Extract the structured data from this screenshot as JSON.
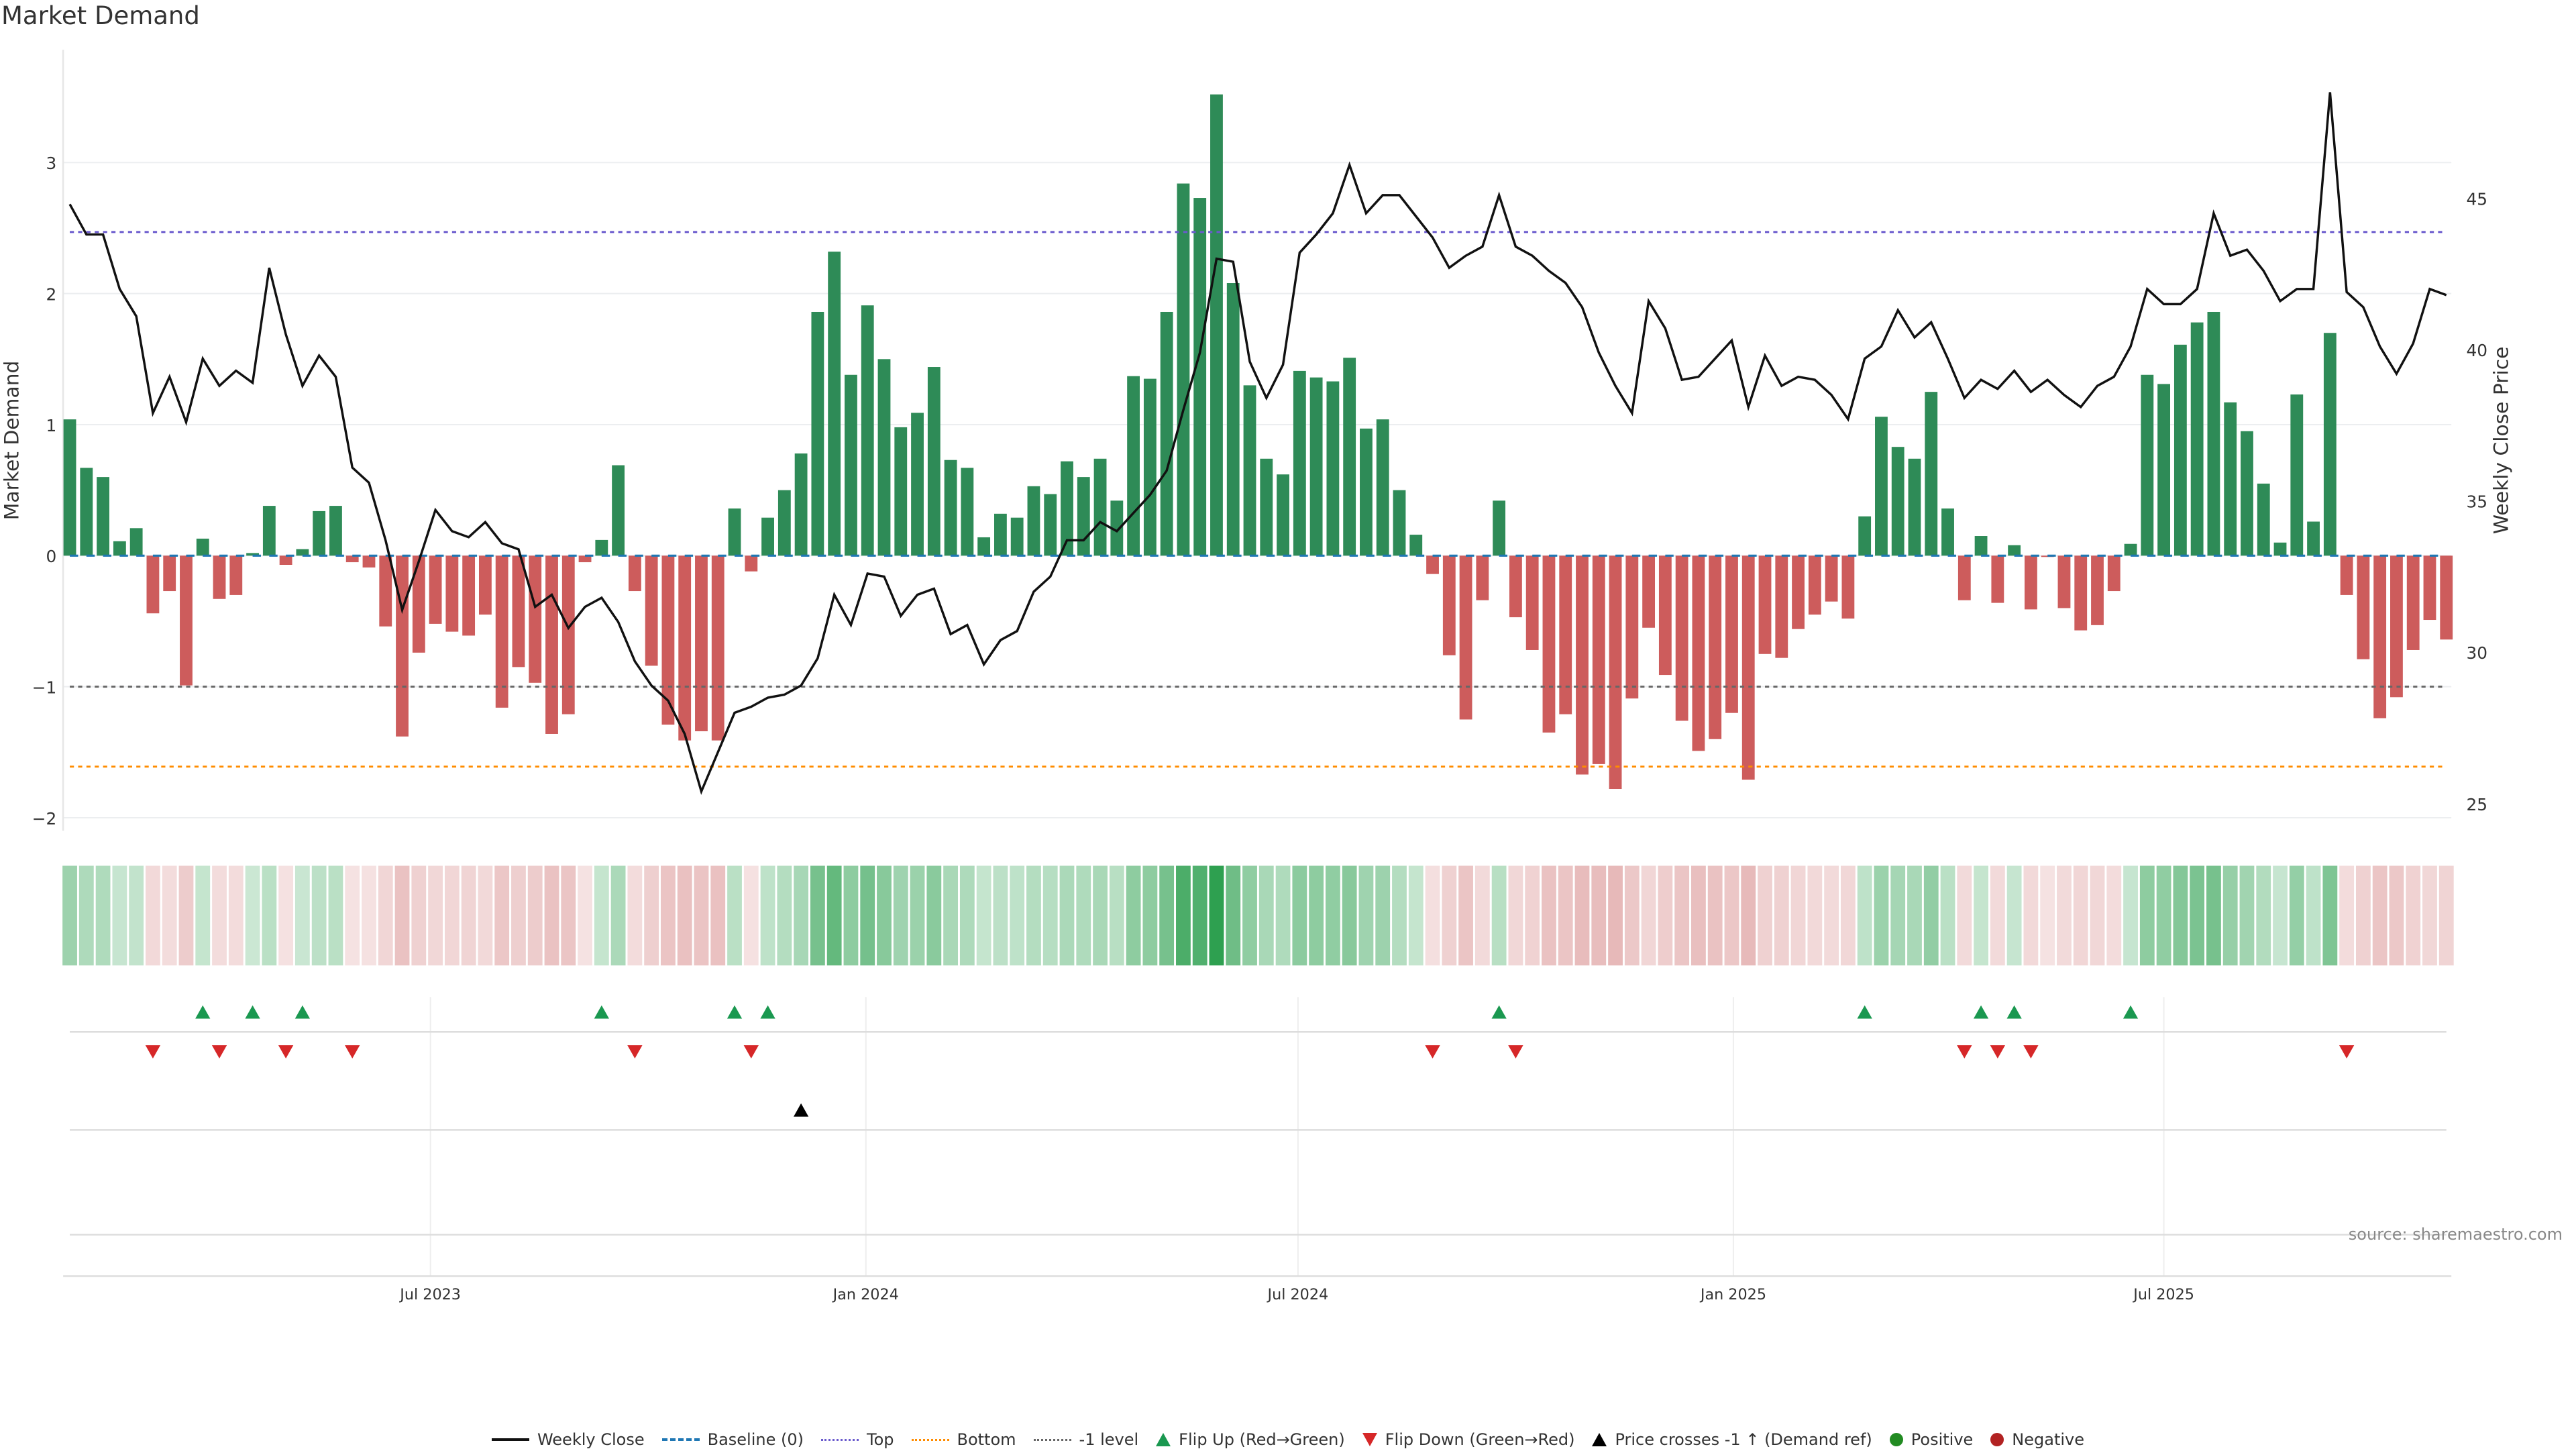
{
  "title": "Market Demand",
  "source": "source: sharemaestro.com",
  "legend": {
    "weekly_close": "Weekly Close",
    "baseline": "Baseline (0)",
    "top": "Top",
    "bottom": "Bottom",
    "minus1": "-1 level",
    "flip_up": "Flip Up (Red→Green)",
    "flip_down": "Flip Down (Green→Red)",
    "price_cross": "Price crosses -1 ↑ (Demand ref)",
    "positive": "Positive",
    "negative": "Negative"
  },
  "colors": {
    "positive": "#2e8b57",
    "negative": "#cd5c5c",
    "price": "#111111",
    "baseline": "#1f77b4",
    "top": "#6a5acd",
    "bottom": "#ff8c00",
    "minus1": "#666666",
    "flip_up": "#1a9850",
    "flip_down": "#d62728",
    "positive_dot": "#228b22",
    "negative_dot": "#b22222"
  },
  "chart_data": {
    "type": "bar+line",
    "title": "Market Demand",
    "ylabel": "Market Demand",
    "y2label": "Weekly Close Price",
    "ylim": [
      -2.1,
      3.86
    ],
    "y2lim": [
      24.1,
      49.9
    ],
    "yticks": [
      -2,
      -1,
      0,
      1,
      2,
      3
    ],
    "yticklabels": [
      "−2",
      "−1",
      "0",
      "1",
      "2",
      "3"
    ],
    "y2ticks": [
      25,
      30,
      35,
      40,
      45
    ],
    "y2ticklabels": [
      "25",
      "30",
      "35",
      "40",
      "45"
    ],
    "x_ticks": [
      {
        "label": "Jul 2023",
        "week": 21.7
      },
      {
        "label": "Jan 2024",
        "week": 47.9
      },
      {
        "label": "Jul 2024",
        "week": 73.9
      },
      {
        "label": "Jan 2025",
        "week": 100.1
      },
      {
        "label": "Jul 2025",
        "week": 126.0
      }
    ],
    "reference_levels": {
      "top": 2.47,
      "bottom": -1.61,
      "minus1": -1.0,
      "baseline": 0
    },
    "demand": [
      1.04,
      0.67,
      0.6,
      0.11,
      0.21,
      -0.44,
      -0.27,
      -0.99,
      0.13,
      -0.33,
      -0.3,
      0.02,
      0.38,
      -0.07,
      0.05,
      0.34,
      0.38,
      -0.05,
      -0.09,
      -0.54,
      -1.38,
      -0.74,
      -0.52,
      -0.58,
      -0.61,
      -0.45,
      -1.16,
      -0.85,
      -0.97,
      -1.36,
      -1.21,
      -0.05,
      0.12,
      0.69,
      -0.27,
      -0.84,
      -1.29,
      -1.41,
      -1.34,
      -1.41,
      0.36,
      -0.12,
      0.29,
      0.5,
      0.78,
      1.86,
      2.32,
      1.38,
      1.91,
      1.5,
      0.98,
      1.09,
      1.44,
      0.73,
      0.67,
      0.14,
      0.32,
      0.29,
      0.53,
      0.47,
      0.72,
      0.6,
      0.74,
      0.42,
      1.37,
      1.35,
      1.86,
      2.84,
      2.73,
      3.52,
      2.08,
      1.3,
      0.74,
      0.62,
      1.41,
      1.36,
      1.33,
      1.51,
      0.97,
      1.04,
      0.5,
      0.16,
      -0.14,
      -0.76,
      -1.25,
      -0.34,
      0.42,
      -0.47,
      -0.72,
      -1.35,
      -1.21,
      -1.67,
      -1.59,
      -1.78,
      -1.09,
      -0.55,
      -0.91,
      -1.26,
      -1.49,
      -1.4,
      -1.2,
      -1.71,
      -0.75,
      -0.78,
      -0.56,
      -0.45,
      -0.35,
      -0.48,
      0.3,
      1.06,
      0.83,
      0.74,
      1.25,
      0.36,
      -0.34,
      0.15,
      -0.36,
      0.08,
      -0.41,
      -0.01,
      -0.4,
      -0.57,
      -0.53,
      -0.27,
      0.09,
      1.38,
      1.31,
      1.61,
      1.78,
      1.86,
      1.17,
      0.95,
      0.55,
      0.1,
      1.23,
      0.26,
      1.7,
      -0.3,
      -0.79,
      -1.24,
      -1.08,
      -0.72,
      -0.49,
      -0.64
    ],
    "weekly_close": [
      44.8,
      43.8,
      43.8,
      42.0,
      41.1,
      37.9,
      39.1,
      37.6,
      39.7,
      38.8,
      39.3,
      38.9,
      42.7,
      40.5,
      38.8,
      39.8,
      39.1,
      36.1,
      35.6,
      33.7,
      31.4,
      33.0,
      34.7,
      34.0,
      33.8,
      34.3,
      33.6,
      33.4,
      31.5,
      31.9,
      30.8,
      31.5,
      31.8,
      31.0,
      29.7,
      28.9,
      28.4,
      27.3,
      25.4,
      26.7,
      28.0,
      28.2,
      28.5,
      28.6,
      28.9,
      29.8,
      31.9,
      30.9,
      32.6,
      32.5,
      31.2,
      31.9,
      32.1,
      30.6,
      30.9,
      29.6,
      30.4,
      30.7,
      32.0,
      32.5,
      33.7,
      33.7,
      34.3,
      34.0,
      34.6,
      35.2,
      36.0,
      38.0,
      39.9,
      43.0,
      42.9,
      39.6,
      38.4,
      39.5,
      43.2,
      43.8,
      44.5,
      46.1,
      44.5,
      45.1,
      45.1,
      44.4,
      43.7,
      42.7,
      43.1,
      43.4,
      45.1,
      43.4,
      43.1,
      42.6,
      42.2,
      41.4,
      39.9,
      38.8,
      37.9,
      41.6,
      40.7,
      39.0,
      39.1,
      39.7,
      40.3,
      38.1,
      39.8,
      38.8,
      39.1,
      39.0,
      38.5,
      37.7,
      39.7,
      40.1,
      41.3,
      40.4,
      40.9,
      39.7,
      38.4,
      39.0,
      38.7,
      39.3,
      38.6,
      39.0,
      38.5,
      38.1,
      38.8,
      39.1,
      40.1,
      42.0,
      41.5,
      41.5,
      42.0,
      44.5,
      43.1,
      43.3,
      42.6,
      41.6,
      42.0,
      42.0,
      48.5,
      41.9,
      41.4,
      40.1,
      39.2,
      40.2,
      42.0,
      41.8
    ],
    "flip_up_weeks": [
      8,
      11,
      14,
      32,
      40,
      42,
      86,
      108,
      115,
      117,
      124
    ],
    "flip_down_weeks": [
      5,
      9,
      13,
      17,
      34,
      41,
      82,
      87,
      114,
      116,
      118,
      137
    ],
    "price_cross_weeks": [
      44
    ]
  }
}
